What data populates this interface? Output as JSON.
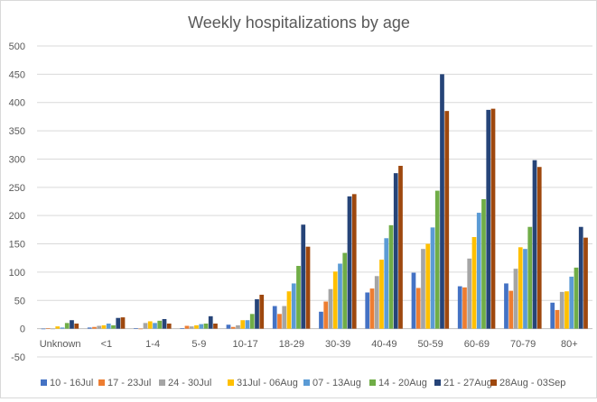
{
  "chart_data": {
    "type": "bar",
    "title": "Weekly hospitalizations by age",
    "xlabel": "",
    "ylabel": "",
    "ylim": [
      -50,
      500
    ],
    "yticks": [
      -50,
      0,
      50,
      100,
      150,
      200,
      250,
      300,
      350,
      400,
      450,
      500
    ],
    "grid": true,
    "legend_position": "bottom",
    "categories": [
      "Unknown",
      "<1",
      "1-4",
      "5-9",
      "10-17",
      "18-29",
      "30-39",
      "40-49",
      "50-59",
      "60-69",
      "70-79",
      "80+"
    ],
    "series": [
      {
        "name": "10 - 16Jul",
        "color": "#4472c4",
        "values": [
          0,
          2,
          1,
          1,
          7,
          40,
          30,
          64,
          99,
          75,
          80,
          46
        ]
      },
      {
        "name": "17 - 23Jul",
        "color": "#ed7d31",
        "values": [
          1,
          3,
          0,
          5,
          3,
          26,
          48,
          71,
          72,
          73,
          67,
          33
        ]
      },
      {
        "name": "24 - 30Jul",
        "color": "#a5a5a5",
        "values": [
          0,
          5,
          10,
          4,
          6,
          40,
          70,
          93,
          141,
          124,
          106,
          65
        ]
      },
      {
        "name": "31Jul - 06Aug",
        "color": "#ffc000",
        "values": [
          4,
          6,
          13,
          6,
          15,
          66,
          101,
          122,
          150,
          162,
          144,
          66
        ]
      },
      {
        "name": "07 - 13Aug",
        "color": "#5b9bd5",
        "values": [
          2,
          9,
          10,
          8,
          15,
          80,
          115,
          160,
          179,
          205,
          141,
          92
        ]
      },
      {
        "name": "14 - 20Aug",
        "color": "#70ad47",
        "values": [
          10,
          6,
          14,
          9,
          26,
          111,
          134,
          183,
          244,
          229,
          180,
          108
        ]
      },
      {
        "name": "21 - 27Aug",
        "color": "#264478",
        "values": [
          15,
          19,
          17,
          22,
          52,
          184,
          234,
          275,
          450,
          387,
          298,
          180
        ]
      },
      {
        "name": "28Aug - 03Sep",
        "color": "#9e480e",
        "values": [
          9,
          20,
          9,
          9,
          60,
          145,
          238,
          288,
          385,
          389,
          286,
          161
        ]
      }
    ]
  }
}
